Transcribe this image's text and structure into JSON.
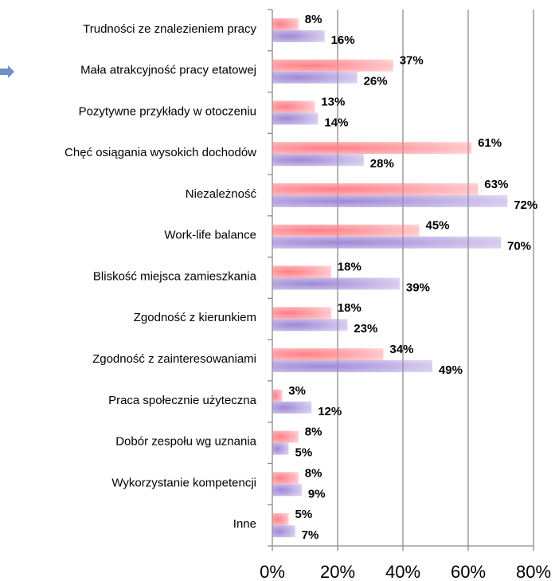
{
  "chart_data": {
    "type": "bar",
    "orientation": "horizontal",
    "categories": [
      "Trudności ze znalezieniem pracy",
      "Mała atrakcyjność pracy etatowej",
      "Pozytywne przykłady w otoczeniu",
      "Chęć osiągania wysokich dochodów",
      "Niezależność",
      "Work-life balance",
      "Bliskość miejsca zamieszkania",
      "Zgodność z kierunkiem",
      "Zgodność z zainteresowaniami",
      "Praca społecznie użyteczna",
      "Dobór zespołu wg uznania",
      "Wykorzystanie kompetencji",
      "Inne"
    ],
    "series": [
      {
        "color": "#ff7f86",
        "values": [
          8,
          37,
          13,
          61,
          63,
          45,
          18,
          18,
          34,
          3,
          8,
          8,
          5
        ],
        "value_labels": [
          "8%",
          "37%",
          "13%",
          "61%",
          "63%",
          "45%",
          "18%",
          "18%",
          "34%",
          "3%",
          "8%",
          "8%",
          "5%"
        ]
      },
      {
        "color": "#9f88d6",
        "values": [
          16,
          26,
          14,
          28,
          72,
          70,
          39,
          23,
          49,
          12,
          5,
          9,
          7
        ],
        "value_labels": [
          "16%",
          "26%",
          "14%",
          "28%",
          "72%",
          "70%",
          "39%",
          "23%",
          "49%",
          "12%",
          "5%",
          "9%",
          "7%"
        ]
      }
    ],
    "xlim": [
      0,
      80
    ],
    "xticks": [
      {
        "value": 0,
        "label": "0%"
      },
      {
        "value": 20,
        "label": "20%"
      },
      {
        "value": 40,
        "label": "40%"
      },
      {
        "value": 60,
        "label": "60%"
      },
      {
        "value": 80,
        "label": "80%"
      }
    ],
    "grid": true
  }
}
